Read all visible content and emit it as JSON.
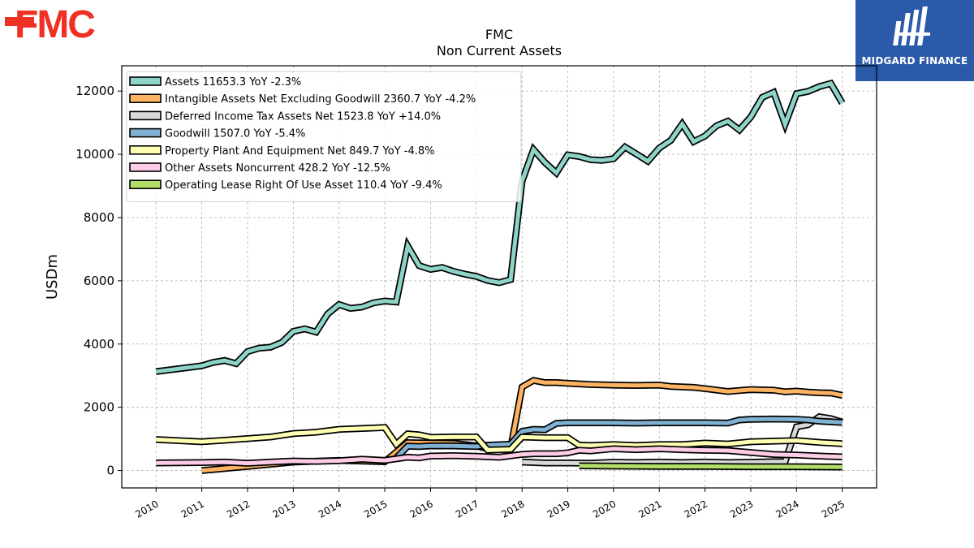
{
  "logos": {
    "left_brand": "FMC",
    "right_brand": "MIDGARD FINANCE",
    "left_color": "#ee3124",
    "right_bg": "#2b5aa8"
  },
  "chart_data": {
    "type": "line",
    "title": "FMC",
    "subtitle": "Non Current  Assets",
    "ylabel": "USDm",
    "xlabel": "",
    "ylim": [
      -550,
      12800
    ],
    "xlim": [
      2009.25,
      2025.75
    ],
    "yticks": [
      0,
      2000,
      4000,
      6000,
      8000,
      10000,
      12000
    ],
    "xticks": [
      "2010",
      "2011",
      "2012",
      "2013",
      "2014",
      "2015",
      "2016",
      "2017",
      "2018",
      "2019",
      "2020",
      "2021",
      "2022",
      "2023",
      "2024",
      "2025"
    ],
    "grid": true,
    "legend_position": "top-left",
    "series": [
      {
        "name": "Assets  11653.3 YoY -2.3%",
        "color": "#8dd3c7",
        "points": [
          [
            2010.0,
            3130
          ],
          [
            2011.0,
            3310
          ],
          [
            2011.25,
            3420
          ],
          [
            2011.5,
            3480
          ],
          [
            2011.75,
            3380
          ],
          [
            2012.0,
            3760
          ],
          [
            2012.25,
            3870
          ],
          [
            2012.5,
            3900
          ],
          [
            2012.75,
            4050
          ],
          [
            2013.0,
            4400
          ],
          [
            2013.25,
            4480
          ],
          [
            2013.5,
            4380
          ],
          [
            2013.75,
            4950
          ],
          [
            2014.0,
            5250
          ],
          [
            2014.25,
            5130
          ],
          [
            2014.5,
            5170
          ],
          [
            2014.75,
            5300
          ],
          [
            2015.0,
            5360
          ],
          [
            2015.25,
            5330
          ],
          [
            2015.5,
            7100
          ],
          [
            2015.75,
            6480
          ],
          [
            2016.0,
            6360
          ],
          [
            2016.25,
            6420
          ],
          [
            2016.5,
            6300
          ],
          [
            2016.75,
            6210
          ],
          [
            2017.0,
            6140
          ],
          [
            2017.25,
            6010
          ],
          [
            2017.5,
            5940
          ],
          [
            2017.75,
            6040
          ],
          [
            2018.0,
            9150
          ],
          [
            2018.25,
            10150
          ],
          [
            2018.5,
            9740
          ],
          [
            2018.75,
            9410
          ],
          [
            2019.0,
            9980
          ],
          [
            2019.25,
            9930
          ],
          [
            2019.5,
            9830
          ],
          [
            2019.75,
            9810
          ],
          [
            2020.0,
            9860
          ],
          [
            2020.25,
            10230
          ],
          [
            2020.5,
            10010
          ],
          [
            2020.75,
            9780
          ],
          [
            2021.0,
            10200
          ],
          [
            2021.25,
            10440
          ],
          [
            2021.5,
            10960
          ],
          [
            2021.75,
            10400
          ],
          [
            2022.0,
            10580
          ],
          [
            2022.25,
            10900
          ],
          [
            2022.5,
            11050
          ],
          [
            2022.75,
            10770
          ],
          [
            2023.0,
            11180
          ],
          [
            2023.25,
            11800
          ],
          [
            2023.5,
            11960
          ],
          [
            2023.75,
            10950
          ],
          [
            2024.0,
            11920
          ],
          [
            2024.25,
            11990
          ],
          [
            2024.5,
            12140
          ],
          [
            2024.75,
            12240
          ],
          [
            2025.0,
            11620
          ]
        ]
      },
      {
        "name": "Intangible Assets Net Excluding Goodwill  2360.7 YoY -4.2%",
        "color": "#fdb462",
        "points": [
          [
            2011.0,
            0
          ],
          [
            2012.0,
            130
          ],
          [
            2013.0,
            270
          ],
          [
            2014.0,
            320
          ],
          [
            2015.0,
            280
          ],
          [
            2015.5,
            880
          ],
          [
            2016.0,
            870
          ],
          [
            2016.5,
            860
          ],
          [
            2017.0,
            780
          ],
          [
            2017.25,
            690
          ],
          [
            2017.75,
            700
          ],
          [
            2018.0,
            2640
          ],
          [
            2018.25,
            2850
          ],
          [
            2018.5,
            2780
          ],
          [
            2018.75,
            2780
          ],
          [
            2019.0,
            2760
          ],
          [
            2019.5,
            2720
          ],
          [
            2020.0,
            2700
          ],
          [
            2020.5,
            2690
          ],
          [
            2021.0,
            2700
          ],
          [
            2021.25,
            2660
          ],
          [
            2021.75,
            2630
          ],
          [
            2022.0,
            2590
          ],
          [
            2022.5,
            2500
          ],
          [
            2022.75,
            2530
          ],
          [
            2023.0,
            2560
          ],
          [
            2023.5,
            2540
          ],
          [
            2023.75,
            2490
          ],
          [
            2024.0,
            2510
          ],
          [
            2024.25,
            2480
          ],
          [
            2024.5,
            2460
          ],
          [
            2024.75,
            2450
          ],
          [
            2025.0,
            2380
          ]
        ]
      },
      {
        "name": "Deferred Income Tax Assets Net  1523.8 YoY +14.0%",
        "color": "#d9d9d9",
        "points": [
          [
            2018.0,
            270
          ],
          [
            2018.5,
            240
          ],
          [
            2019.0,
            240
          ],
          [
            2019.5,
            230
          ],
          [
            2020.0,
            260
          ],
          [
            2020.5,
            250
          ],
          [
            2021.0,
            270
          ],
          [
            2021.5,
            250
          ],
          [
            2022.0,
            270
          ],
          [
            2022.5,
            250
          ],
          [
            2023.0,
            260
          ],
          [
            2023.5,
            280
          ],
          [
            2023.75,
            280
          ],
          [
            2024.0,
            1380
          ],
          [
            2024.25,
            1450
          ],
          [
            2024.5,
            1700
          ],
          [
            2024.75,
            1640
          ],
          [
            2025.0,
            1530
          ]
        ]
      },
      {
        "name": "Goodwill  1507.0 YoY -5.4%",
        "color": "#80b1d3",
        "points": [
          [
            2015.25,
            400
          ],
          [
            2015.5,
            770
          ],
          [
            2015.75,
            760
          ],
          [
            2016.0,
            780
          ],
          [
            2016.5,
            780
          ],
          [
            2017.0,
            760
          ],
          [
            2017.25,
            800
          ],
          [
            2017.75,
            830
          ],
          [
            2018.0,
            1240
          ],
          [
            2018.25,
            1300
          ],
          [
            2018.5,
            1290
          ],
          [
            2018.75,
            1490
          ],
          [
            2019.0,
            1510
          ],
          [
            2019.5,
            1510
          ],
          [
            2020.0,
            1510
          ],
          [
            2020.5,
            1500
          ],
          [
            2021.0,
            1510
          ],
          [
            2021.5,
            1510
          ],
          [
            2022.0,
            1510
          ],
          [
            2022.5,
            1500
          ],
          [
            2022.75,
            1600
          ],
          [
            2023.0,
            1620
          ],
          [
            2023.5,
            1630
          ],
          [
            2024.0,
            1620
          ],
          [
            2024.25,
            1600
          ],
          [
            2024.5,
            1560
          ],
          [
            2025.0,
            1520
          ]
        ]
      },
      {
        "name": "Property Plant And Equipment Net  849.7 YoY -4.8%",
        "color": "#ffffb3",
        "points": [
          [
            2010.0,
            980
          ],
          [
            2011.0,
            910
          ],
          [
            2011.5,
            960
          ],
          [
            2012.0,
            1010
          ],
          [
            2012.5,
            1060
          ],
          [
            2013.0,
            1170
          ],
          [
            2013.5,
            1210
          ],
          [
            2014.0,
            1300
          ],
          [
            2014.5,
            1330
          ],
          [
            2015.0,
            1360
          ],
          [
            2015.25,
            830
          ],
          [
            2015.5,
            1160
          ],
          [
            2015.75,
            1130
          ],
          [
            2016.0,
            1050
          ],
          [
            2016.5,
            1060
          ],
          [
            2017.0,
            1060
          ],
          [
            2017.25,
            650
          ],
          [
            2017.75,
            670
          ],
          [
            2018.0,
            1060
          ],
          [
            2018.5,
            1040
          ],
          [
            2019.0,
            1040
          ],
          [
            2019.25,
            800
          ],
          [
            2019.5,
            790
          ],
          [
            2020.0,
            820
          ],
          [
            2020.5,
            790
          ],
          [
            2021.0,
            820
          ],
          [
            2021.5,
            820
          ],
          [
            2022.0,
            870
          ],
          [
            2022.5,
            840
          ],
          [
            2023.0,
            910
          ],
          [
            2023.5,
            930
          ],
          [
            2024.0,
            950
          ],
          [
            2024.5,
            890
          ],
          [
            2025.0,
            850
          ]
        ]
      },
      {
        "name": "Other Assets Noncurrent  428.2 YoY -12.5%",
        "color": "#fccde5",
        "points": [
          [
            2010.0,
            240
          ],
          [
            2011.0,
            250
          ],
          [
            2011.5,
            270
          ],
          [
            2012.0,
            230
          ],
          [
            2012.5,
            270
          ],
          [
            2013.0,
            300
          ],
          [
            2013.5,
            290
          ],
          [
            2014.0,
            310
          ],
          [
            2014.5,
            360
          ],
          [
            2015.0,
            320
          ],
          [
            2015.5,
            420
          ],
          [
            2015.75,
            400
          ],
          [
            2016.0,
            460
          ],
          [
            2016.5,
            470
          ],
          [
            2017.0,
            450
          ],
          [
            2017.5,
            420
          ],
          [
            2018.0,
            510
          ],
          [
            2018.25,
            530
          ],
          [
            2018.75,
            530
          ],
          [
            2019.0,
            560
          ],
          [
            2019.25,
            640
          ],
          [
            2019.5,
            620
          ],
          [
            2020.0,
            690
          ],
          [
            2020.5,
            660
          ],
          [
            2021.0,
            690
          ],
          [
            2021.5,
            660
          ],
          [
            2022.0,
            640
          ],
          [
            2022.5,
            630
          ],
          [
            2023.0,
            570
          ],
          [
            2023.5,
            510
          ],
          [
            2024.0,
            490
          ],
          [
            2024.5,
            460
          ],
          [
            2025.0,
            430
          ]
        ]
      },
      {
        "name": "Operating Lease Right Of Use Asset  110.4 YoY -9.4%",
        "color": "#b3de69",
        "points": [
          [
            2019.25,
            150
          ],
          [
            2020.0,
            140
          ],
          [
            2021.0,
            130
          ],
          [
            2022.0,
            130
          ],
          [
            2023.0,
            120
          ],
          [
            2024.0,
            120
          ],
          [
            2025.0,
            110
          ]
        ]
      }
    ]
  }
}
